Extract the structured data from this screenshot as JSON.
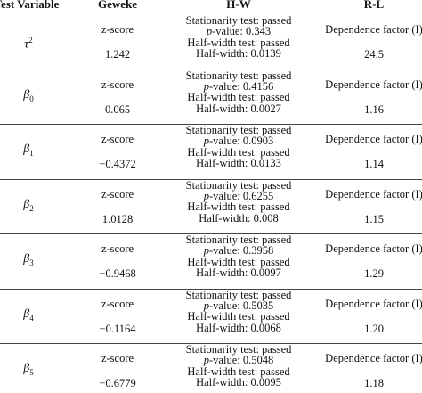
{
  "headers": {
    "test_variable": "Test Variable",
    "geweke": "Geweke",
    "hw": "H-W",
    "rl": "R-L"
  },
  "rows": [
    {
      "var_base": "τ",
      "var_sup": "2",
      "var_sub": "",
      "geweke_label": "z-score",
      "geweke_value": "1.242",
      "hw_stationarity": "Stationarity test: passed",
      "hw_p_label": "p",
      "hw_p_rest": "-value: 0.343",
      "hw_halfwidth_test": "Half-width test: passed",
      "hw_halfwidth": "Half-width: 0.0139",
      "rl_label": "Dependence factor (I)",
      "rl_value": "24.5"
    },
    {
      "var_base": "β",
      "var_sup": "",
      "var_sub": "0",
      "geweke_label": "z-score",
      "geweke_value": "0.065",
      "hw_stationarity": "Stationarity test: passed",
      "hw_p_label": "p",
      "hw_p_rest": "-value: 0.4156",
      "hw_halfwidth_test": "Half-width test: passed",
      "hw_halfwidth": "Half-width: 0.0027",
      "rl_label": "Dependence factor (I)",
      "rl_value": "1.16"
    },
    {
      "var_base": "β",
      "var_sup": "",
      "var_sub": "1",
      "geweke_label": "z-score",
      "geweke_value": "−0.4372",
      "hw_stationarity": "Stationarity test: passed",
      "hw_p_label": "p",
      "hw_p_rest": "-value: 0.0903",
      "hw_halfwidth_test": "Half-width test: passed",
      "hw_halfwidth": "Half-width: 0.0133",
      "rl_label": "Dependence factor (I)",
      "rl_value": "1.14"
    },
    {
      "var_base": "β",
      "var_sup": "",
      "var_sub": "2",
      "geweke_label": "z-score",
      "geweke_value": "1.0128",
      "hw_stationarity": "Stationarity test: passed",
      "hw_p_label": "p",
      "hw_p_rest": "-value: 0.6255",
      "hw_halfwidth_test": "Half-width test: passed",
      "hw_halfwidth": "Half-width: 0.008",
      "rl_label": "Dependence factor (I)",
      "rl_value": "1.15"
    },
    {
      "var_base": "β",
      "var_sup": "",
      "var_sub": "3",
      "geweke_label": "z-score",
      "geweke_value": "−0.9468",
      "hw_stationarity": "Stationarity test: passed",
      "hw_p_label": "p",
      "hw_p_rest": "-value: 0.3958",
      "hw_halfwidth_test": "Half-width test: passed",
      "hw_halfwidth": "Half-width: 0.0097",
      "rl_label": "Dependence factor (I)",
      "rl_value": "1.29"
    },
    {
      "var_base": "β",
      "var_sup": "",
      "var_sub": "4",
      "geweke_label": "z-score",
      "geweke_value": "−0.1164",
      "hw_stationarity": "Stationarity test: passed",
      "hw_p_label": "p",
      "hw_p_rest": "-value: 0.5035",
      "hw_halfwidth_test": "Half-width test: passed",
      "hw_halfwidth": "Half-width: 0.0068",
      "rl_label": "Dependence factor (I)",
      "rl_value": "1.20"
    },
    {
      "var_base": "β",
      "var_sup": "",
      "var_sub": "5",
      "geweke_label": "z-score",
      "geweke_value": "−0.6779",
      "hw_stationarity": "Stationarity test: passed",
      "hw_p_label": "p",
      "hw_p_rest": "-value: 0.5048",
      "hw_halfwidth_test": "Half-width test: passed",
      "hw_halfwidth": "Half-width: 0.0095",
      "rl_label": "Dependence factor (I)",
      "rl_value": "1.18"
    }
  ]
}
